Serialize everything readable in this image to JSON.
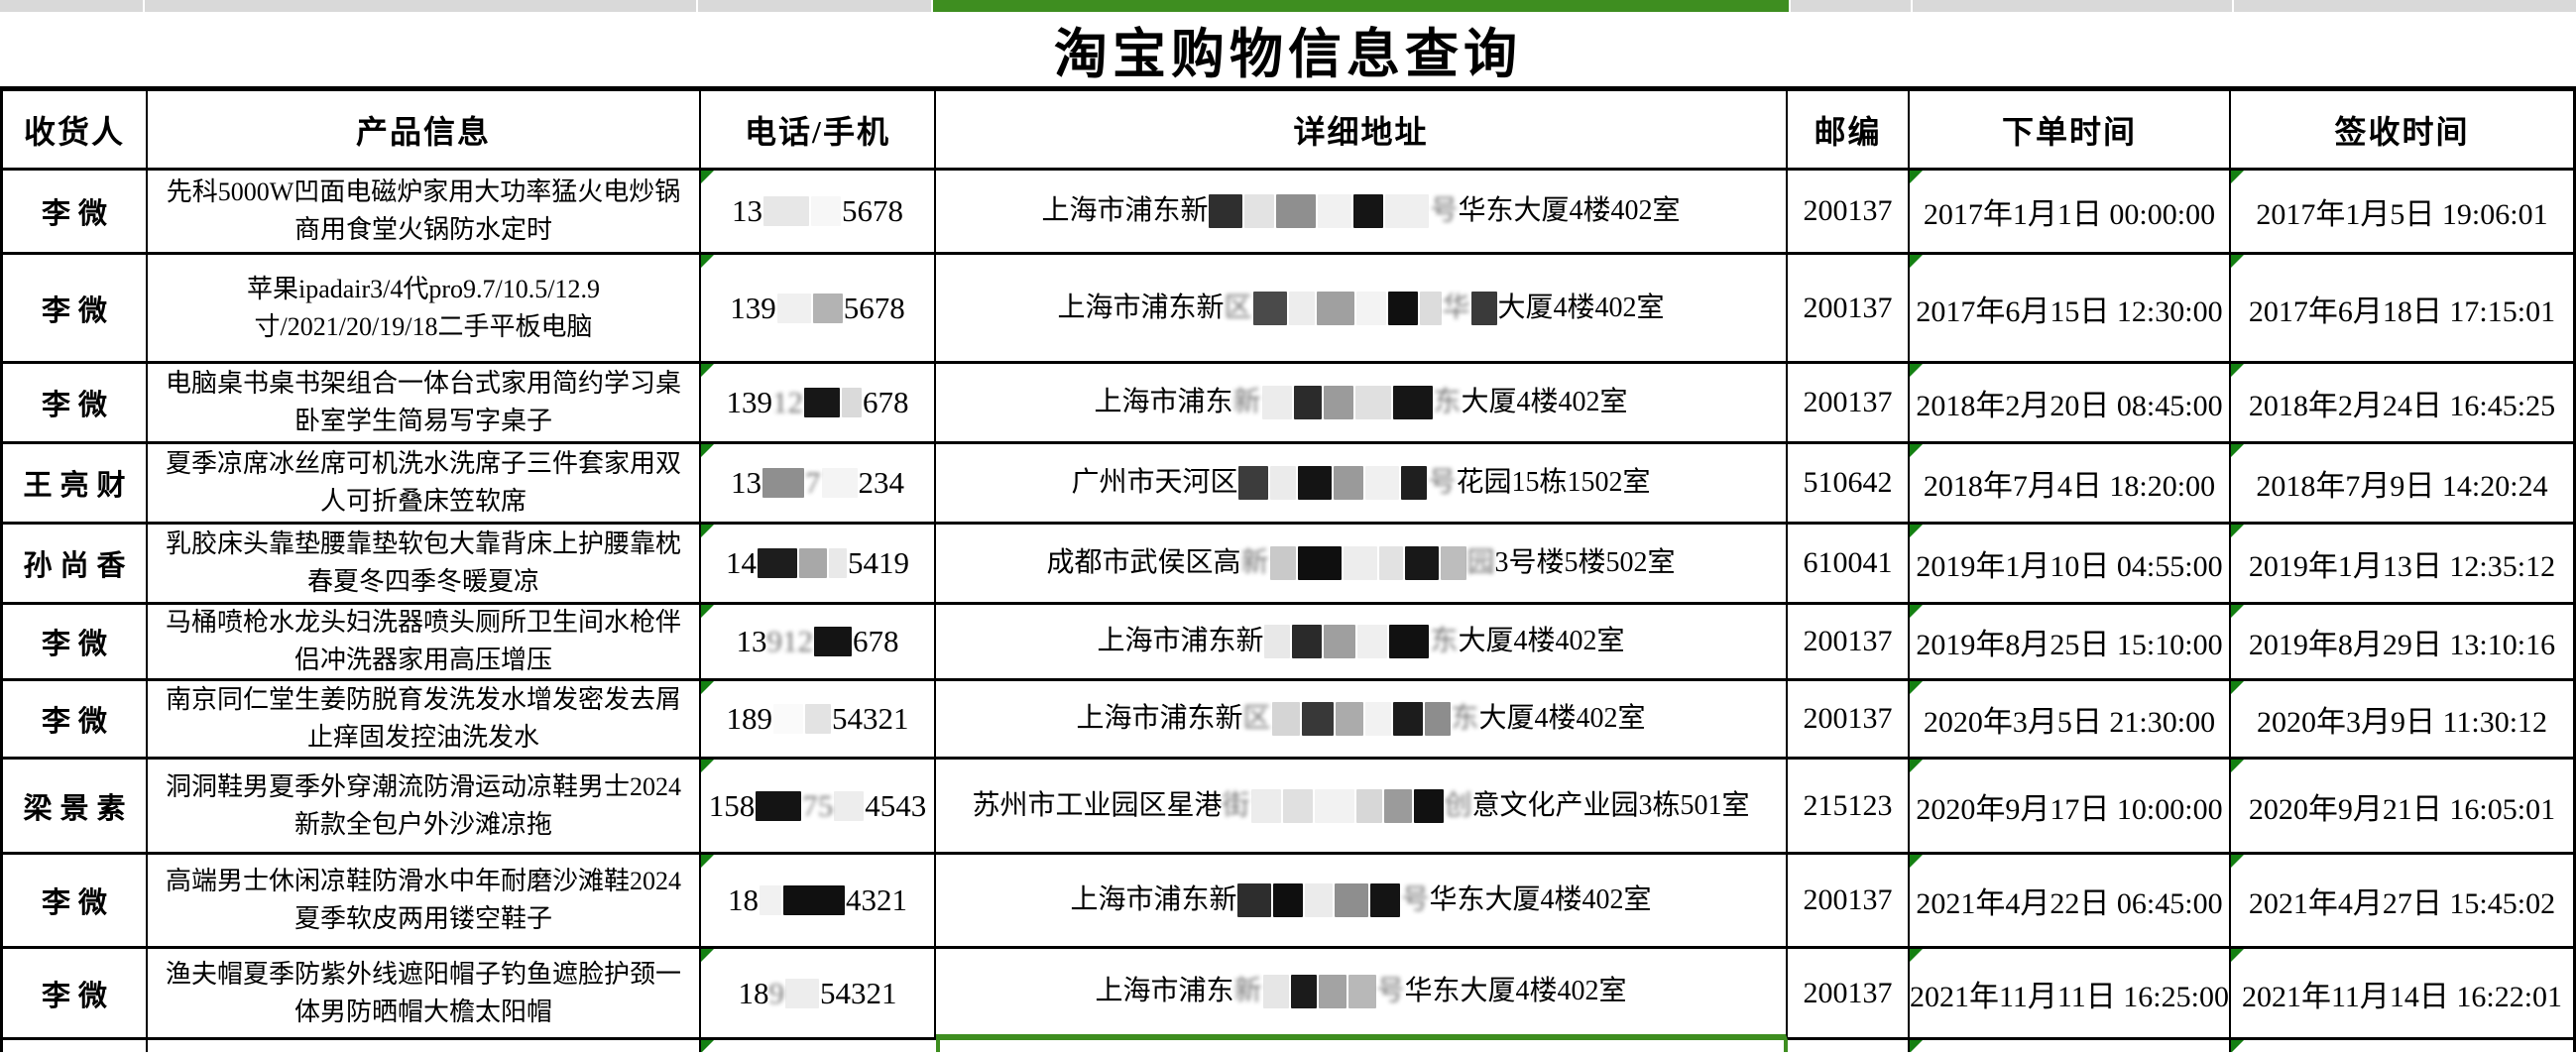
{
  "title": "淘宝购物信息查询",
  "colors": {
    "accent_green": "#3e8e20",
    "triangle_green": "#148012",
    "strip_gray": "#d9d9d9",
    "border_black": "#000000"
  },
  "top_strip": {
    "segments": [
      {
        "name": "col-recipient",
        "color": "#d9d9d9"
      },
      {
        "name": "col-product",
        "color": "#d9d9d9"
      },
      {
        "name": "col-phone",
        "color": "#d9d9d9"
      },
      {
        "name": "col-address",
        "color": "#3e8e20"
      },
      {
        "name": "col-postal",
        "color": "#d9d9d9"
      },
      {
        "name": "col-order-time",
        "color": "#d9d9d9"
      },
      {
        "name": "col-sign-time",
        "color": "#d9d9d9"
      }
    ]
  },
  "columns": [
    "收货人",
    "产品信息",
    "电话/手机",
    "详细地址",
    "邮编",
    "下单时间",
    "签收时间"
  ],
  "rows": [
    {
      "recipient": "李微",
      "product": "先科5000W凹面电磁炉家用大功率猛火电炒锅商用食堂火锅防水定时",
      "phone_parts": [
        {
          "t": "x",
          "v": "13"
        },
        {
          "t": "b",
          "c": "#e7e7e7",
          "w": 46
        },
        {
          "t": "b",
          "c": "#f7f7f7",
          "w": 30
        },
        {
          "t": "x",
          "v": "5678"
        }
      ],
      "address_parts": [
        {
          "t": "x",
          "v": "上海市浦东新"
        },
        {
          "t": "b",
          "c": "#2f2f2f",
          "w": 34
        },
        {
          "t": "b",
          "c": "#e3e3e3",
          "w": 30
        },
        {
          "t": "b",
          "c": "#8f8f8f",
          "w": 40
        },
        {
          "t": "b",
          "c": "#f1f1f1",
          "w": 34
        },
        {
          "t": "b",
          "c": "#151515",
          "w": 30
        },
        {
          "t": "b",
          "c": "#efefef",
          "w": 44
        },
        {
          "t": "g",
          "v": "号"
        },
        {
          "t": "x",
          "v": "华东大厦4楼402室"
        }
      ],
      "postal": "200137",
      "order_time": "2017年1月1日 00:00:00",
      "sign_time": "2017年1月5日 19:06:01"
    },
    {
      "recipient": "李微",
      "product": "苹果ipadair3/4代pro9.7/10.5/12.9寸/2021/20/19/18二手平板电脑",
      "phone_parts": [
        {
          "t": "x",
          "v": "139"
        },
        {
          "t": "b",
          "c": "#f0f0f0",
          "w": 34
        },
        {
          "t": "b",
          "c": "#b3b3b3",
          "w": 30
        },
        {
          "t": "x",
          "v": "5678"
        }
      ],
      "address_parts": [
        {
          "t": "x",
          "v": "上海市浦东新"
        },
        {
          "t": "g",
          "v": "区"
        },
        {
          "t": "b",
          "c": "#4a4a4a",
          "w": 34
        },
        {
          "t": "b",
          "c": "#ededed",
          "w": 26
        },
        {
          "t": "b",
          "c": "#a0a0a0",
          "w": 38
        },
        {
          "t": "b",
          "c": "#f3f3f3",
          "w": 30
        },
        {
          "t": "b",
          "c": "#101010",
          "w": 30
        },
        {
          "t": "b",
          "c": "#dcdcdc",
          "w": 22
        },
        {
          "t": "g",
          "v": "华"
        },
        {
          "t": "b",
          "c": "#3a3a3a",
          "w": 26
        },
        {
          "t": "x",
          "v": "大厦4楼402室"
        }
      ],
      "postal": "200137",
      "order_time": "2017年6月15日 12:30:00",
      "sign_time": "2017年6月18日 17:15:01"
    },
    {
      "recipient": "李微",
      "product": "电脑桌书桌书架组合一体台式家用简约学习桌卧室学生简易写字桌子",
      "phone_parts": [
        {
          "t": "x",
          "v": "139"
        },
        {
          "t": "g",
          "v": "12"
        },
        {
          "t": "b",
          "c": "#171717",
          "w": 36
        },
        {
          "t": "b",
          "c": "#dadada",
          "w": 20
        },
        {
          "t": "x",
          "v": "678"
        }
      ],
      "address_parts": [
        {
          "t": "x",
          "v": "上海市浦东"
        },
        {
          "t": "g",
          "v": "新"
        },
        {
          "t": "b",
          "c": "#ececec",
          "w": 30
        },
        {
          "t": "b",
          "c": "#2b2b2b",
          "w": 28
        },
        {
          "t": "b",
          "c": "#9b9b9b",
          "w": 30
        },
        {
          "t": "b",
          "c": "#e0e0e0",
          "w": 36
        },
        {
          "t": "b",
          "c": "#161616",
          "w": 40
        },
        {
          "t": "g",
          "v": "东"
        },
        {
          "t": "x",
          "v": "大厦4楼402室"
        }
      ],
      "postal": "200137",
      "order_time": "2018年2月20日 08:45:00",
      "sign_time": "2018年2月24日 16:45:25"
    },
    {
      "recipient": "王亮财",
      "product": "夏季凉席冰丝席可机洗水洗席子三件套家用双人可折叠床笠软席",
      "phone_parts": [
        {
          "t": "x",
          "v": "13"
        },
        {
          "t": "b",
          "c": "#8f8f8f",
          "w": 42
        },
        {
          "t": "g",
          "v": "7"
        },
        {
          "t": "b",
          "c": "#f4f4f4",
          "w": 36
        },
        {
          "t": "x",
          "v": "234"
        }
      ],
      "address_parts": [
        {
          "t": "x",
          "v": "广州市天河区"
        },
        {
          "t": "b",
          "c": "#3c3c3c",
          "w": 30
        },
        {
          "t": "b",
          "c": "#ebebeb",
          "w": 26
        },
        {
          "t": "b",
          "c": "#141414",
          "w": 34
        },
        {
          "t": "b",
          "c": "#9a9a9a",
          "w": 30
        },
        {
          "t": "b",
          "c": "#f0f0f0",
          "w": 34
        },
        {
          "t": "b",
          "c": "#1f1f1f",
          "w": 26
        },
        {
          "t": "g",
          "v": "号"
        },
        {
          "t": "x",
          "v": "花园15栋1502室"
        }
      ],
      "postal": "510642",
      "order_time": "2018年7月4日 18:20:00",
      "sign_time": "2018年7月9日 14:20:24"
    },
    {
      "recipient": "孙尚香",
      "product": "乳胶床头靠垫腰靠垫软包大靠背床上护腰靠枕春夏冬四季冬暖夏凉",
      "phone_parts": [
        {
          "t": "x",
          "v": "14"
        },
        {
          "t": "b",
          "c": "#1d1d1d",
          "w": 40
        },
        {
          "t": "b",
          "c": "#a8a8a8",
          "w": 28
        },
        {
          "t": "b",
          "c": "#e9e9e9",
          "w": 18
        },
        {
          "t": "x",
          "v": "5419"
        }
      ],
      "address_parts": [
        {
          "t": "x",
          "v": "成都市武侯区高"
        },
        {
          "t": "g",
          "v": "新"
        },
        {
          "t": "b",
          "c": "#c9c9c9",
          "w": 26
        },
        {
          "t": "b",
          "c": "#0f0f0f",
          "w": 44
        },
        {
          "t": "b",
          "c": "#ededed",
          "w": 34
        },
        {
          "t": "b",
          "c": "#e2e2e2",
          "w": 24
        },
        {
          "t": "b",
          "c": "#181818",
          "w": 34
        },
        {
          "t": "b",
          "c": "#bdbdbd",
          "w": 26
        },
        {
          "t": "g",
          "v": "园"
        },
        {
          "t": "x",
          "v": "3号楼5楼502室"
        }
      ],
      "postal": "610041",
      "order_time": "2019年1月10日 04:55:00",
      "sign_time": "2019年1月13日 12:35:12"
    },
    {
      "recipient": "李微",
      "product": "马桶喷枪水龙头妇洗器喷头厕所卫生间水枪伴侣冲洗器家用高压增压",
      "phone_parts": [
        {
          "t": "x",
          "v": "13"
        },
        {
          "t": "g",
          "v": "912"
        },
        {
          "t": "b",
          "c": "#141414",
          "w": 38
        },
        {
          "t": "x",
          "v": "678"
        }
      ],
      "address_parts": [
        {
          "t": "x",
          "v": "上海市浦东新"
        },
        {
          "t": "b",
          "c": "#e8e8e8",
          "w": 26
        },
        {
          "t": "b",
          "c": "#2a2a2a",
          "w": 30
        },
        {
          "t": "b",
          "c": "#9f9f9f",
          "w": 32
        },
        {
          "t": "b",
          "c": "#efefef",
          "w": 30
        },
        {
          "t": "b",
          "c": "#111111",
          "w": 40
        },
        {
          "t": "g",
          "v": "东"
        },
        {
          "t": "x",
          "v": "大厦4楼402室"
        }
      ],
      "postal": "200137",
      "order_time": "2019年8月25日 15:10:00",
      "sign_time": "2019年8月29日 13:10:16"
    },
    {
      "recipient": "李微",
      "product": "南京同仁堂生姜防脱育发洗发水增发密发去屑止痒固发控油洗发水",
      "phone_parts": [
        {
          "t": "x",
          "v": "189"
        },
        {
          "t": "b",
          "c": "#fafafa",
          "w": 30
        },
        {
          "t": "b",
          "c": "#e3e3e3",
          "w": 26
        },
        {
          "t": "x",
          "v": "54321"
        }
      ],
      "address_parts": [
        {
          "t": "x",
          "v": "上海市浦东新"
        },
        {
          "t": "g",
          "v": "区"
        },
        {
          "t": "b",
          "c": "#d5d5d5",
          "w": 28
        },
        {
          "t": "b",
          "c": "#383838",
          "w": 32
        },
        {
          "t": "b",
          "c": "#ababab",
          "w": 28
        },
        {
          "t": "b",
          "c": "#f2f2f2",
          "w": 26
        },
        {
          "t": "b",
          "c": "#1c1c1c",
          "w": 30
        },
        {
          "t": "b",
          "c": "#8d8d8d",
          "w": 26
        },
        {
          "t": "g",
          "v": "东"
        },
        {
          "t": "x",
          "v": "大厦4楼402室"
        }
      ],
      "postal": "200137",
      "order_time": "2020年3月5日 21:30:00",
      "sign_time": "2020年3月9日 11:30:12"
    },
    {
      "recipient": "梁景素",
      "product": "洞洞鞋男夏季外穿潮流防滑运动凉鞋男士2024新款全包户外沙滩凉拖",
      "phone_parts": [
        {
          "t": "x",
          "v": "158"
        },
        {
          "t": "b",
          "c": "#141414",
          "w": 46
        },
        {
          "t": "g",
          "v": "75"
        },
        {
          "t": "b",
          "c": "#ededed",
          "w": 30
        },
        {
          "t": "x",
          "v": "4543"
        }
      ],
      "address_parts": [
        {
          "t": "x",
          "v": "苏州市工业园区星港"
        },
        {
          "t": "g",
          "v": "街"
        },
        {
          "t": "b",
          "c": "#ececec",
          "w": 30
        },
        {
          "t": "b",
          "c": "#e0e0e0",
          "w": 30
        },
        {
          "t": "b",
          "c": "#f2f2f2",
          "w": 40
        },
        {
          "t": "b",
          "c": "#d7d7d7",
          "w": 26
        },
        {
          "t": "b",
          "c": "#9b9b9b",
          "w": 28
        },
        {
          "t": "b",
          "c": "#111111",
          "w": 30
        },
        {
          "t": "g",
          "v": "创"
        },
        {
          "t": "x",
          "v": "意文化产业园3栋501室"
        }
      ],
      "postal": "215123",
      "order_time": "2020年9月17日 10:00:00",
      "sign_time": "2020年9月21日 16:05:01"
    },
    {
      "recipient": "李微",
      "product": "高端男士休闲凉鞋防滑水中年耐磨沙滩鞋2024夏季软皮两用镂空鞋子",
      "phone_parts": [
        {
          "t": "x",
          "v": "18"
        },
        {
          "t": "b",
          "c": "#f1f1f1",
          "w": 22
        },
        {
          "t": "b",
          "c": "#101010",
          "w": 62
        },
        {
          "t": "x",
          "v": "4321"
        }
      ],
      "address_parts": [
        {
          "t": "x",
          "v": "上海市浦东新"
        },
        {
          "t": "b",
          "c": "#2d2d2d",
          "w": 34
        },
        {
          "t": "b",
          "c": "#0f0f0f",
          "w": 30
        },
        {
          "t": "b",
          "c": "#ebebeb",
          "w": 28
        },
        {
          "t": "b",
          "c": "#8e8e8e",
          "w": 34
        },
        {
          "t": "b",
          "c": "#141414",
          "w": 30
        },
        {
          "t": "g",
          "v": "号"
        },
        {
          "t": "x",
          "v": "华东大厦4楼402室"
        }
      ],
      "postal": "200137",
      "order_time": "2021年4月22日 06:45:00",
      "sign_time": "2021年4月27日 15:45:02"
    },
    {
      "recipient": "李微",
      "product": "渔夫帽夏季防紫外线遮阳帽子钓鱼遮脸护颈一体男防晒帽大檐太阳帽",
      "phone_parts": [
        {
          "t": "x",
          "v": "18"
        },
        {
          "t": "g",
          "v": "9"
        },
        {
          "t": "b",
          "c": "#ededed",
          "w": 34
        },
        {
          "t": "x",
          "v": "54321"
        }
      ],
      "address_parts": [
        {
          "t": "x",
          "v": "上海市浦东"
        },
        {
          "t": "g",
          "v": "新"
        },
        {
          "t": "b",
          "c": "#e6e6e6",
          "w": 26
        },
        {
          "t": "b",
          "c": "#1b1b1b",
          "w": 26
        },
        {
          "t": "b",
          "c": "#a3a3a3",
          "w": 28
        },
        {
          "t": "b",
          "c": "#b8b8b8",
          "w": 28
        },
        {
          "t": "g",
          "v": "号"
        },
        {
          "t": "x",
          "v": "华东大厦4楼402室"
        }
      ],
      "postal": "200137",
      "order_time": "2021年11月11日 16:25:00",
      "sign_time": "2021年11月14日 16:22:01"
    }
  ],
  "partial_row": {
    "visible": true
  }
}
